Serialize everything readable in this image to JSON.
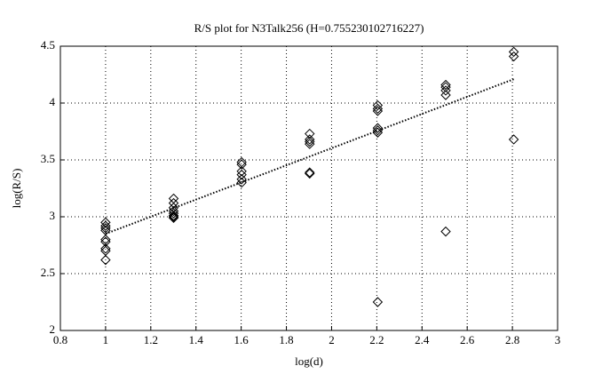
{
  "chart_data": {
    "type": "scatter",
    "title": "R/S plot for N3Talk256 (H=0.755230102716227)",
    "xlabel": "log(d)",
    "ylabel": "log(R/S)",
    "xlim": [
      0.8,
      3
    ],
    "ylim": [
      2,
      4.5
    ],
    "xticks": [
      0.8,
      1,
      1.2,
      1.4,
      1.6,
      1.8,
      2,
      2.2,
      2.4,
      2.6,
      2.8,
      3
    ],
    "yticks": [
      2,
      2.5,
      3,
      3.5,
      4,
      4.5
    ],
    "grid": true,
    "series": [
      {
        "color": "#000000",
        "x": [
          1,
          1,
          1,
          1,
          1,
          1,
          1,
          1,
          1,
          1.301,
          1.301,
          1.301,
          1.301,
          1.301,
          1.301,
          1.301,
          1.301,
          1.602,
          1.602,
          1.602,
          1.602,
          1.602,
          1.602,
          1.903,
          1.903,
          1.903,
          1.903,
          1.903,
          1.903,
          2.204,
          2.204,
          2.204,
          2.204,
          2.204,
          2.204,
          2.204,
          2.505,
          2.505,
          2.505,
          2.505,
          2.505,
          2.806,
          2.806,
          2.806
        ],
        "values": [
          2.95,
          2.92,
          2.9,
          2.88,
          2.8,
          2.78,
          2.72,
          2.7,
          2.62,
          3.16,
          3.12,
          3.08,
          3.05,
          3.03,
          3.01,
          3.0,
          2.99,
          3.48,
          3.46,
          3.4,
          3.37,
          3.33,
          3.3,
          3.73,
          3.68,
          3.66,
          3.64,
          3.39,
          3.38,
          3.98,
          3.95,
          3.93,
          3.78,
          3.76,
          3.74,
          2.25,
          4.16,
          4.14,
          4.11,
          4.07,
          2.87,
          4.45,
          4.41,
          3.68
        ]
      }
    ],
    "fit": {
      "color": "#000000",
      "x": [
        1,
        2.806
      ],
      "values": [
        2.85,
        4.21
      ]
    }
  }
}
